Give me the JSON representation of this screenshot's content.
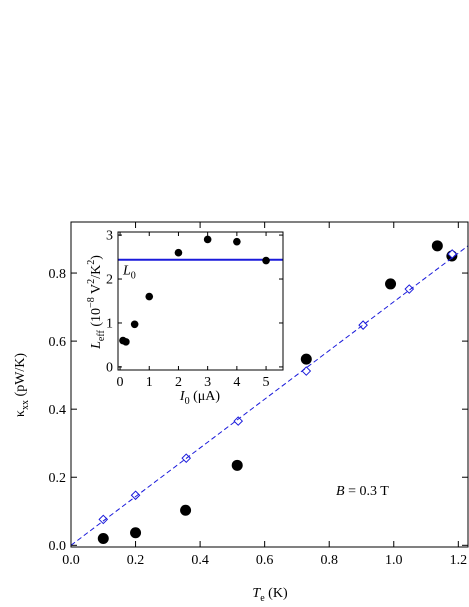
{
  "chart_data": [
    {
      "type": "scatter",
      "xlabel": [
        {
          "text": "T",
          "style": "italic"
        },
        {
          "text": "e",
          "style": "sub"
        },
        {
          "text": " (K)"
        }
      ],
      "ylabel": [
        {
          "text": "κ"
        },
        {
          "text": "xx",
          "style": "sub"
        },
        {
          "text": " (pW/K)"
        }
      ],
      "annotation": [
        {
          "text": "B",
          "style": "italic"
        },
        {
          "text": " = 0.3 T"
        }
      ],
      "xlim": [
        0,
        1.23
      ],
      "ylim": [
        -0.005,
        0.95
      ],
      "xticks": [
        {
          "value": 0,
          "label": "0.0"
        },
        0.2,
        0.4,
        0.6,
        0.8,
        {
          "value": 1,
          "label": "1.0"
        },
        1.2
      ],
      "yticks": [
        {
          "value": 0,
          "label": "0.0"
        },
        0.2,
        0.4,
        0.6,
        0.8
      ],
      "series": [
        {
          "color": "#000000",
          "marker": "circle",
          "x": [
            0.1,
            0.2,
            0.355,
            0.515,
            0.729,
            0.99,
            1.135,
            1.18
          ],
          "values": [
            0.02,
            0.037,
            0.103,
            0.235,
            0.547,
            0.768,
            0.88,
            0.85
          ]
        },
        {
          "color": "#1a1adb",
          "marker": "diamond",
          "x": [
            0.1,
            0.2,
            0.357,
            0.518,
            0.729,
            0.905,
            1.048,
            1.181
          ],
          "values": [
            0.076,
            0.147,
            0.256,
            0.365,
            0.512,
            0.647,
            0.753,
            0.856
          ]
        },
        {
          "color": "#1a1adb",
          "line_style": "dashed",
          "x": [
            0,
            1.23
          ],
          "values": [
            0,
            0.88
          ]
        }
      ]
    },
    {
      "type": "scatter",
      "xlabel": [
        {
          "text": "I",
          "style": "italic"
        },
        {
          "text": "0",
          "style": "sub"
        },
        {
          "text": " (μA)"
        }
      ],
      "ylabel": [
        {
          "text": "L",
          "style": "italic"
        },
        {
          "text": "eff",
          "style": "sub"
        },
        {
          "text": " (10"
        },
        {
          "text": "−8",
          "style": "sup"
        },
        {
          "text": " V"
        },
        {
          "text": "2",
          "style": "sup"
        },
        {
          "text": "/K"
        },
        {
          "text": "2",
          "style": "sup"
        },
        {
          "text": ")"
        }
      ],
      "xlim": [
        -0.07,
        5.58
      ],
      "ylim": [
        -0.07,
        3.07
      ],
      "xticks": [
        0,
        1,
        2,
        3,
        4,
        5
      ],
      "yticks": [
        0,
        1,
        2,
        3
      ],
      "series": [
        {
          "color": "#000000",
          "marker": "circle",
          "x": [
            0.1,
            0.2,
            0.5,
            1.0,
            2.0,
            3.0,
            4.0,
            5.0
          ],
          "values": [
            0.6,
            0.57,
            0.97,
            1.6,
            2.6,
            2.9,
            2.85,
            2.42
          ]
        }
      ],
      "hlines": [
        {
          "value": 2.44,
          "color": "#1a1adb",
          "label": [
            {
              "text": "L",
              "style": "italic"
            },
            {
              "text": "0",
              "style": "sub"
            }
          ]
        }
      ]
    }
  ]
}
